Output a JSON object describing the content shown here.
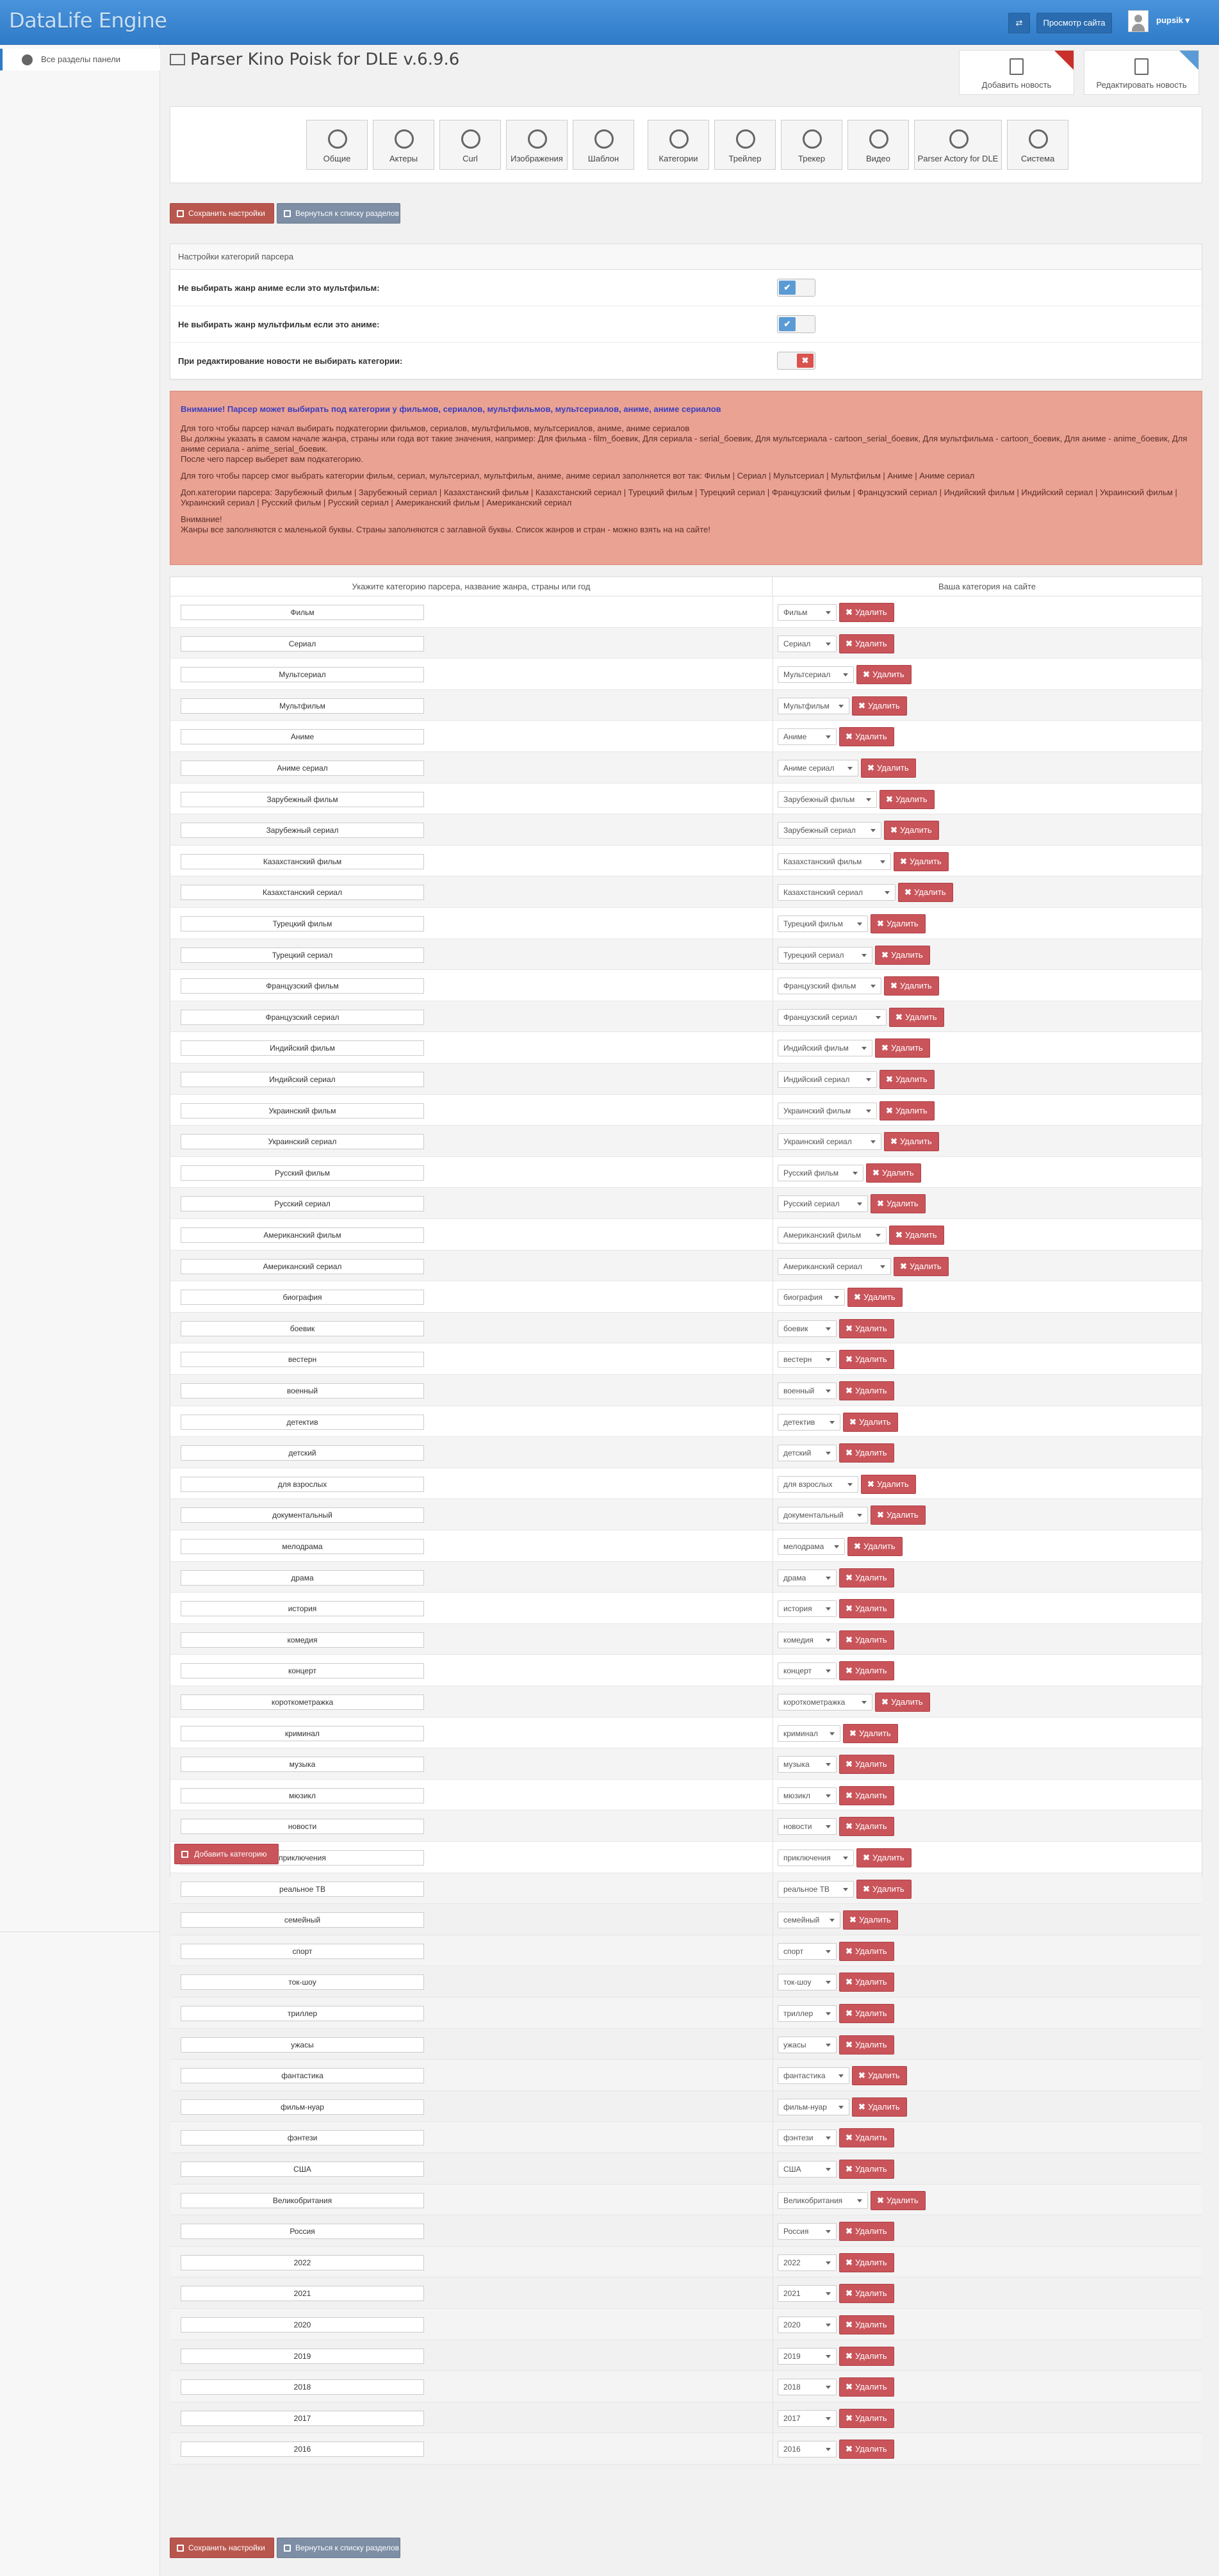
{
  "app": {
    "logo": "DataLife Engine",
    "view_site": "Просмотр сайта",
    "user": "pupsik",
    "swap_icon": "⇄"
  },
  "sidebar": {
    "item": "Все разделы панели"
  },
  "page": {
    "title": "Parser Kino Poisk for DLE v.6.9.6"
  },
  "quick": {
    "add_news": "Добавить новость",
    "edit_news": "Редактировать новость"
  },
  "tools": [
    "Общие",
    "Актеры",
    "Curl",
    "Изображения",
    "Шаблон",
    "Категории",
    "Трейлер",
    "Трекер",
    "Видео",
    "Parser Actory for DLE",
    "Система"
  ],
  "actions": {
    "save": "Сохранить настройки",
    "back": "Вернуться к списку разделов",
    "add_category": "Добавить категорию"
  },
  "settings": {
    "header": "Настройки категорий парсера",
    "rows": [
      {
        "label": "Не выбирать жанр аниме если это мультфильм:",
        "state": "on"
      },
      {
        "label": "Не выбирать жанр мультфильм если это аниме:",
        "state": "on"
      },
      {
        "label": "При редактирование новости не выбирать категории:",
        "state": "off"
      }
    ]
  },
  "warning": {
    "title": "Внимание! Парсер может выбирать под категории у фильмов, сериалов, мультфильмов, мультсериалов, аниме, аниме сериалов",
    "p1": "Для того чтобы парсер начал выбирать подкатегории фильмов, сериалов, мультфильмов, мультсериалов, аниме, аниме сериалов",
    "p2": "Вы должны указать в самом начале жанра, страны или года вот такие значения, например: Для фильма - film_боевик, Для сериала - serial_боевик, Для мультсериала - cartoon_serial_боевик, Для мультфильма - cartoon_боевик, Для аниме - anime_боевик, Для аниме сериала - anime_serial_боевик.",
    "p3": "После чего парсер выберет вам подкатегорию.",
    "p4": "Для того чтобы парсер смог выбрать категории фильм, сериал, мультсериал, мультфильм, аниме, аниме сериал заполняется вот так: Фильм | Сериал | Мультсериал | Мультфильм | Аниме | Аниме сериал",
    "p5": "Доп.категории парсера: Зарубежный фильм | Зарубежный сериал | Казахстанский фильм | Казахстанский сериал | Турецкий фильм | Турецкий сериал | Французский фильм | Французский сериал | Индийский фильм | Индийский сериал | Украинский фильм | Украинский сериал | Русский фильм | Русский сериал | Американский фильм | Американский сериал",
    "p6": "Внимание!",
    "p7": "Жанры все заполняются с маленькой буквы. Страны заполняются с заглавной буквы. Список жанров и стран - можно взять на на сайте!"
  },
  "table": {
    "col1": "Укажите категорию парсера, название жанра, страны или год",
    "col2": "Ваша категория на сайте",
    "delete_label": "Удалить",
    "rows": [
      {
        "name": "Фильм",
        "category": "Фильм"
      },
      {
        "name": "Сериал",
        "category": "Сериал"
      },
      {
        "name": "Мультсериал",
        "category": "Мультсериал"
      },
      {
        "name": "Мультфильм",
        "category": "Мультфильм"
      },
      {
        "name": "Аниме",
        "category": "Аниме"
      },
      {
        "name": "Аниме сериал",
        "category": "Аниме сериал"
      },
      {
        "name": "Зарубежный фильм",
        "category": "Зарубежный фильм"
      },
      {
        "name": "Зарубежный сериал",
        "category": "Зарубежный сериал"
      },
      {
        "name": "Казахстанский фильм",
        "category": "Казахстанский фильм"
      },
      {
        "name": "Казахстанский сериал",
        "category": "Казахстанский сериал"
      },
      {
        "name": "Турецкий фильм",
        "category": "Турецкий фильм"
      },
      {
        "name": "Турецкий сериал",
        "category": "Турецкий сериал"
      },
      {
        "name": "Французский фильм",
        "category": "Французский фильм"
      },
      {
        "name": "Французский сериал",
        "category": "Французский сериал"
      },
      {
        "name": "Индийский фильм",
        "category": "Индийский фильм"
      },
      {
        "name": "Индийский сериал",
        "category": "Индийский сериал"
      },
      {
        "name": "Украинский фильм",
        "category": "Украинский фильм"
      },
      {
        "name": "Украинский сериал",
        "category": "Украинский сериал"
      },
      {
        "name": "Русский фильм",
        "category": "Русский фильм"
      },
      {
        "name": "Русский сериал",
        "category": "Русский сериал"
      },
      {
        "name": "Американский фильм",
        "category": "Американский фильм"
      },
      {
        "name": "Американский сериал",
        "category": "Американский сериал"
      },
      {
        "name": "биография",
        "category": "биография"
      },
      {
        "name": "боевик",
        "category": "боевик"
      },
      {
        "name": "вестерн",
        "category": "вестерн"
      },
      {
        "name": "военный",
        "category": "военный"
      },
      {
        "name": "детектив",
        "category": "детектив"
      },
      {
        "name": "детский",
        "category": "детский"
      },
      {
        "name": "для взрослых",
        "category": "для взрослых"
      },
      {
        "name": "документальный",
        "category": "документальный"
      },
      {
        "name": "мелодрама",
        "category": "мелодрама"
      },
      {
        "name": "драма",
        "category": "драма"
      },
      {
        "name": "история",
        "category": "история"
      },
      {
        "name": "комедия",
        "category": "комедия"
      },
      {
        "name": "концерт",
        "category": "концерт"
      },
      {
        "name": "короткометражка",
        "category": "короткометражка"
      },
      {
        "name": "криминал",
        "category": "криминал"
      },
      {
        "name": "музыка",
        "category": "музыка"
      },
      {
        "name": "мюзикл",
        "category": "мюзикл"
      },
      {
        "name": "новости",
        "category": "новости"
      },
      {
        "name": "приключения",
        "category": "приключения"
      },
      {
        "name": "реальное ТВ",
        "category": "реальное ТВ"
      },
      {
        "name": "семейный",
        "category": "семейный"
      },
      {
        "name": "спорт",
        "category": "спорт"
      },
      {
        "name": "ток-шоу",
        "category": "ток-шоу"
      },
      {
        "name": "триллер",
        "category": "триллер"
      },
      {
        "name": "ужасы",
        "category": "ужасы"
      },
      {
        "name": "фантастика",
        "category": "фантастика"
      },
      {
        "name": "фильм-нуар",
        "category": "фильм-нуар"
      },
      {
        "name": "фэнтези",
        "category": "фэнтези"
      },
      {
        "name": "США",
        "category": "США"
      },
      {
        "name": "Великобритания",
        "category": "Великобритания"
      },
      {
        "name": "Россия",
        "category": "Россия"
      },
      {
        "name": "2022",
        "category": "2022"
      },
      {
        "name": "2021",
        "category": "2021"
      },
      {
        "name": "2020",
        "category": "2020"
      },
      {
        "name": "2019",
        "category": "2019"
      },
      {
        "name": "2018",
        "category": "2018"
      },
      {
        "name": "2017",
        "category": "2017"
      },
      {
        "name": "2016",
        "category": "2016"
      }
    ]
  }
}
